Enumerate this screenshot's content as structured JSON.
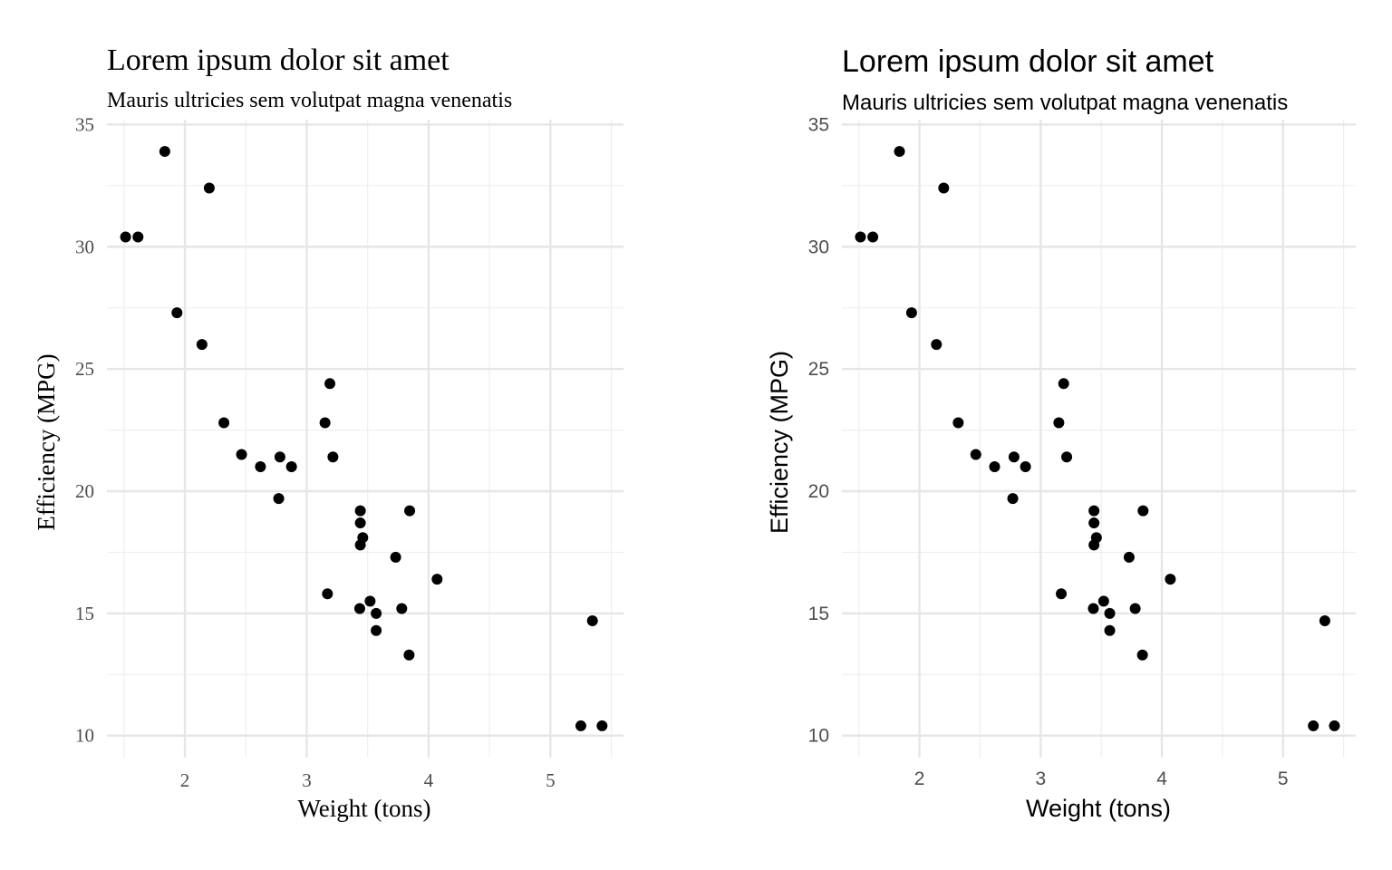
{
  "chart_data": [
    {
      "type": "scatter",
      "title": "Lorem ipsum dolor sit amet",
      "subtitle": "Mauris ultricies sem volutpat magna venenatis",
      "xlabel": "Weight (tons)",
      "ylabel": "Efficiency (MPG)",
      "xlim": [
        1.36,
        5.6
      ],
      "ylim": [
        9.1,
        35.2
      ],
      "xticks": [
        2,
        3,
        4,
        5
      ],
      "yticks": [
        10,
        15,
        20,
        25,
        30,
        35
      ],
      "grid": true,
      "font_style": "serif",
      "points": [
        {
          "x": 2.62,
          "y": 21.0
        },
        {
          "x": 2.875,
          "y": 21.0
        },
        {
          "x": 2.32,
          "y": 22.8
        },
        {
          "x": 3.215,
          "y": 21.4
        },
        {
          "x": 3.44,
          "y": 18.7
        },
        {
          "x": 3.46,
          "y": 18.1
        },
        {
          "x": 3.57,
          "y": 14.3
        },
        {
          "x": 3.19,
          "y": 24.4
        },
        {
          "x": 3.15,
          "y": 22.8
        },
        {
          "x": 3.44,
          "y": 19.2
        },
        {
          "x": 3.44,
          "y": 17.8
        },
        {
          "x": 4.07,
          "y": 16.4
        },
        {
          "x": 3.73,
          "y": 17.3
        },
        {
          "x": 3.78,
          "y": 15.2
        },
        {
          "x": 5.25,
          "y": 10.4
        },
        {
          "x": 5.424,
          "y": 10.4
        },
        {
          "x": 5.345,
          "y": 14.7
        },
        {
          "x": 2.2,
          "y": 32.4
        },
        {
          "x": 1.615,
          "y": 30.4
        },
        {
          "x": 1.835,
          "y": 33.9
        },
        {
          "x": 2.465,
          "y": 21.5
        },
        {
          "x": 3.52,
          "y": 15.5
        },
        {
          "x": 3.435,
          "y": 15.2
        },
        {
          "x": 3.84,
          "y": 13.3
        },
        {
          "x": 3.845,
          "y": 19.2
        },
        {
          "x": 1.935,
          "y": 27.3
        },
        {
          "x": 2.14,
          "y": 26.0
        },
        {
          "x": 1.513,
          "y": 30.4
        },
        {
          "x": 3.17,
          "y": 15.8
        },
        {
          "x": 2.77,
          "y": 19.7
        },
        {
          "x": 3.57,
          "y": 15.0
        },
        {
          "x": 2.78,
          "y": 21.4
        }
      ]
    },
    {
      "type": "scatter",
      "title": "Lorem ipsum dolor sit amet",
      "subtitle": "Mauris ultricies sem volutpat magna venenatis",
      "xlabel": "Weight (tons)",
      "ylabel": "Efficiency (MPG)",
      "xlim": [
        1.36,
        5.6
      ],
      "ylim": [
        9.1,
        35.2
      ],
      "xticks": [
        2,
        3,
        4,
        5
      ],
      "yticks": [
        10,
        15,
        20,
        25,
        30,
        35
      ],
      "grid": true,
      "font_style": "sans",
      "points": [
        {
          "x": 2.62,
          "y": 21.0
        },
        {
          "x": 2.875,
          "y": 21.0
        },
        {
          "x": 2.32,
          "y": 22.8
        },
        {
          "x": 3.215,
          "y": 21.4
        },
        {
          "x": 3.44,
          "y": 18.7
        },
        {
          "x": 3.46,
          "y": 18.1
        },
        {
          "x": 3.57,
          "y": 14.3
        },
        {
          "x": 3.19,
          "y": 24.4
        },
        {
          "x": 3.15,
          "y": 22.8
        },
        {
          "x": 3.44,
          "y": 19.2
        },
        {
          "x": 3.44,
          "y": 17.8
        },
        {
          "x": 4.07,
          "y": 16.4
        },
        {
          "x": 3.73,
          "y": 17.3
        },
        {
          "x": 3.78,
          "y": 15.2
        },
        {
          "x": 5.25,
          "y": 10.4
        },
        {
          "x": 5.424,
          "y": 10.4
        },
        {
          "x": 5.345,
          "y": 14.7
        },
        {
          "x": 2.2,
          "y": 32.4
        },
        {
          "x": 1.615,
          "y": 30.4
        },
        {
          "x": 1.835,
          "y": 33.9
        },
        {
          "x": 2.465,
          "y": 21.5
        },
        {
          "x": 3.52,
          "y": 15.5
        },
        {
          "x": 3.435,
          "y": 15.2
        },
        {
          "x": 3.84,
          "y": 13.3
        },
        {
          "x": 3.845,
          "y": 19.2
        },
        {
          "x": 1.935,
          "y": 27.3
        },
        {
          "x": 2.14,
          "y": 26.0
        },
        {
          "x": 1.513,
          "y": 30.4
        },
        {
          "x": 3.17,
          "y": 15.8
        },
        {
          "x": 2.77,
          "y": 19.7
        },
        {
          "x": 3.57,
          "y": 15.0
        },
        {
          "x": 2.78,
          "y": 21.4
        }
      ]
    }
  ]
}
